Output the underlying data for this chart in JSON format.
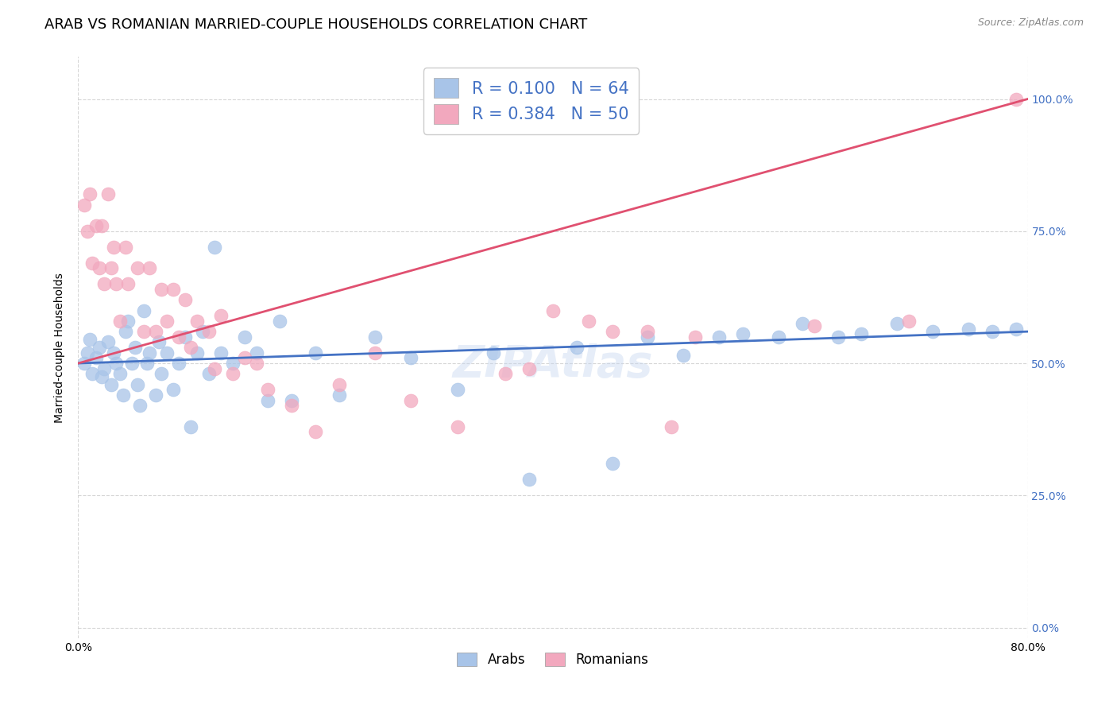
{
  "title": "ARAB VS ROMANIAN MARRIED-COUPLE HOUSEHOLDS CORRELATION CHART",
  "source": "Source: ZipAtlas.com",
  "xlim": [
    0.0,
    0.8
  ],
  "ylim": [
    -0.02,
    1.08
  ],
  "x_tick_positions": [
    0.0,
    0.8
  ],
  "x_tick_labels": [
    "0.0%",
    "80.0%"
  ],
  "y_tick_positions": [
    0.0,
    0.25,
    0.5,
    0.75,
    1.0
  ],
  "y_tick_labels": [
    "0.0%",
    "25.0%",
    "50.0%",
    "75.0%",
    "100.0%"
  ],
  "watermark": "ZIPAtlas",
  "arab_color": "#a8c4e8",
  "romanian_color": "#f2a8be",
  "arab_line_color": "#4472c4",
  "romanian_line_color": "#e05070",
  "arab_scatter_x": [
    0.005,
    0.008,
    0.01,
    0.012,
    0.015,
    0.018,
    0.02,
    0.022,
    0.025,
    0.028,
    0.03,
    0.032,
    0.035,
    0.038,
    0.04,
    0.042,
    0.045,
    0.048,
    0.05,
    0.052,
    0.055,
    0.058,
    0.06,
    0.065,
    0.068,
    0.07,
    0.075,
    0.08,
    0.085,
    0.09,
    0.095,
    0.1,
    0.105,
    0.11,
    0.115,
    0.12,
    0.13,
    0.14,
    0.15,
    0.16,
    0.17,
    0.18,
    0.2,
    0.22,
    0.25,
    0.28,
    0.32,
    0.35,
    0.38,
    0.42,
    0.45,
    0.48,
    0.51,
    0.54,
    0.56,
    0.59,
    0.61,
    0.64,
    0.66,
    0.69,
    0.72,
    0.75,
    0.77,
    0.79
  ],
  "arab_scatter_y": [
    0.5,
    0.52,
    0.545,
    0.48,
    0.51,
    0.53,
    0.475,
    0.49,
    0.54,
    0.46,
    0.52,
    0.5,
    0.48,
    0.44,
    0.56,
    0.58,
    0.5,
    0.53,
    0.46,
    0.42,
    0.6,
    0.5,
    0.52,
    0.44,
    0.54,
    0.48,
    0.52,
    0.45,
    0.5,
    0.55,
    0.38,
    0.52,
    0.56,
    0.48,
    0.72,
    0.52,
    0.5,
    0.55,
    0.52,
    0.43,
    0.58,
    0.43,
    0.52,
    0.44,
    0.55,
    0.51,
    0.45,
    0.52,
    0.28,
    0.53,
    0.31,
    0.55,
    0.515,
    0.55,
    0.555,
    0.55,
    0.575,
    0.55,
    0.555,
    0.575,
    0.56,
    0.565,
    0.56,
    0.565
  ],
  "romanian_scatter_x": [
    0.005,
    0.008,
    0.01,
    0.012,
    0.015,
    0.018,
    0.02,
    0.022,
    0.025,
    0.028,
    0.03,
    0.032,
    0.035,
    0.04,
    0.042,
    0.05,
    0.055,
    0.06,
    0.065,
    0.07,
    0.075,
    0.08,
    0.085,
    0.09,
    0.095,
    0.1,
    0.11,
    0.115,
    0.12,
    0.13,
    0.14,
    0.15,
    0.16,
    0.18,
    0.2,
    0.22,
    0.25,
    0.28,
    0.32,
    0.36,
    0.38,
    0.4,
    0.43,
    0.45,
    0.48,
    0.5,
    0.52,
    0.62,
    0.7,
    0.79
  ],
  "romanian_scatter_y": [
    0.8,
    0.75,
    0.82,
    0.69,
    0.76,
    0.68,
    0.76,
    0.65,
    0.82,
    0.68,
    0.72,
    0.65,
    0.58,
    0.72,
    0.65,
    0.68,
    0.56,
    0.68,
    0.56,
    0.64,
    0.58,
    0.64,
    0.55,
    0.62,
    0.53,
    0.58,
    0.56,
    0.49,
    0.59,
    0.48,
    0.51,
    0.5,
    0.45,
    0.42,
    0.37,
    0.46,
    0.52,
    0.43,
    0.38,
    0.48,
    0.49,
    0.6,
    0.58,
    0.56,
    0.56,
    0.38,
    0.55,
    0.57,
    0.58,
    1.0
  ],
  "arab_trend_x": [
    0.0,
    0.8
  ],
  "arab_trend_y": [
    0.5,
    0.56
  ],
  "romanian_trend_x": [
    0.0,
    0.8
  ],
  "romanian_trend_y": [
    0.5,
    1.0
  ],
  "ylabel": "Married-couple Households",
  "legend_arab_label": "R = 0.100   N = 64",
  "legend_romanian_label": "R = 0.384   N = 50",
  "bottom_legend_arab": "Arabs",
  "bottom_legend_romanian": "Romanians",
  "grid_color": "#cccccc",
  "background_color": "#ffffff",
  "title_fontsize": 13,
  "axis_label_fontsize": 10,
  "tick_fontsize": 10,
  "legend_fontsize": 15,
  "watermark_color": "#c8d8f0",
  "watermark_alpha": 0.45,
  "watermark_fontsize": 40
}
